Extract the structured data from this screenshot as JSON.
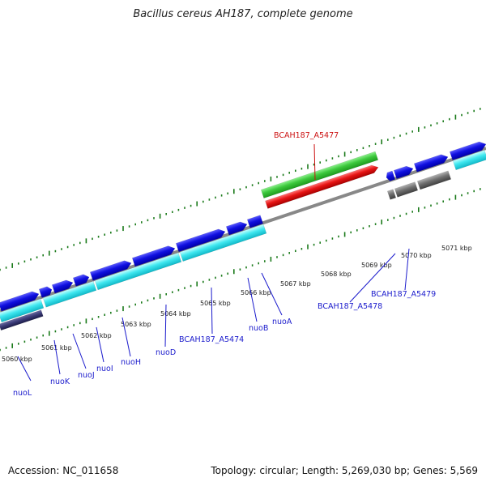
{
  "title": "Bacillus cereus AH187, complete genome",
  "footer": {
    "accession": "Accession: NC_011658",
    "topology": "Topology: circular; Length: 5,269,030 bp; Genes: 5,569"
  },
  "colors": {
    "forward_cds": "#1010e0",
    "reverse_cds": "#40e8f0",
    "highlight_top": "#3cc83c",
    "highlight_bottom": "#e61414",
    "pseudo": "#707070",
    "ticks": "#1a7a1a",
    "backbone": "#888888"
  },
  "tick_labels": [
    "5060 kbp",
    "5061 kbp",
    "5062 kbp",
    "5063 kbp",
    "5064 kbp",
    "5065 kbp",
    "5066 kbp",
    "5067 kbp",
    "5068 kbp",
    "5069 kbp",
    "5070 kbp",
    "5071 kbp"
  ],
  "gene_labels": [
    {
      "text": "nuoL",
      "color": "blue"
    },
    {
      "text": "nuoK",
      "color": "blue"
    },
    {
      "text": "nuoJ",
      "color": "blue"
    },
    {
      "text": "nuoI",
      "color": "blue"
    },
    {
      "text": "nuoH",
      "color": "blue"
    },
    {
      "text": "nuoD",
      "color": "blue"
    },
    {
      "text": "BCAH187_A5474",
      "color": "blue"
    },
    {
      "text": "nuoB",
      "color": "blue"
    },
    {
      "text": "nuoA",
      "color": "blue"
    },
    {
      "text": "BCAH187_A5477",
      "color": "red"
    },
    {
      "text": "BCAH187_A5478",
      "color": "blue"
    },
    {
      "text": "BCAH187_A5479",
      "color": "blue"
    }
  ]
}
